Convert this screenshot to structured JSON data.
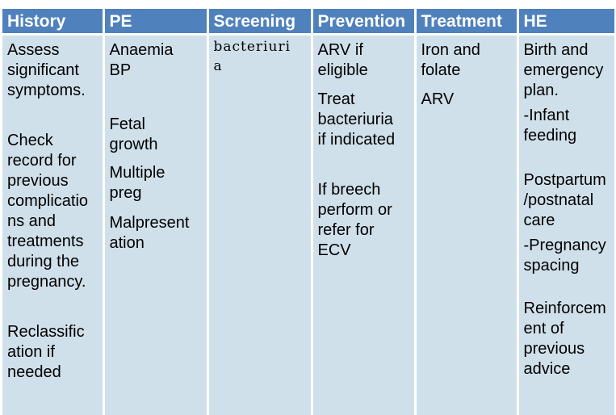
{
  "table": {
    "headers": [
      "History",
      "PE",
      "Screening",
      "Prevention",
      "Treatment",
      "HE"
    ],
    "columns": {
      "history": [
        "Assess\nsignificant\nsymptoms.",
        "Check\nrecord for\nprevious\ncomplicatio\nns and\ntreatments\nduring the\npregnancy.",
        "Reclassific\nation if\nneeded"
      ],
      "pe": [
        "Anaemia\nBP",
        "Fetal\ngrowth",
        "Multiple\npreg",
        "Malpresent\nation"
      ],
      "screening": [
        "bacteriuri\na"
      ],
      "prevention": [
        "ARV if\neligible",
        "Treat\nbacteriuria\nif indicated",
        "If breech\nperform or\nrefer for\nECV"
      ],
      "treatment": [
        "Iron and\nfolate",
        "ARV"
      ],
      "he": [
        "Birth and\nemergency\nplan.",
        "-Infant\nfeeding",
        "Postpartum\n/postnatal\ncare",
        "-Pregnancy\nspacing",
        "Reinforcem\nent of\nprevious\nadvice"
      ]
    }
  },
  "colors": {
    "header_bg": "#4f81bd",
    "header_text": "#ffffff",
    "cell_bg": "#d0e0ea",
    "cell_text": "#000000"
  }
}
